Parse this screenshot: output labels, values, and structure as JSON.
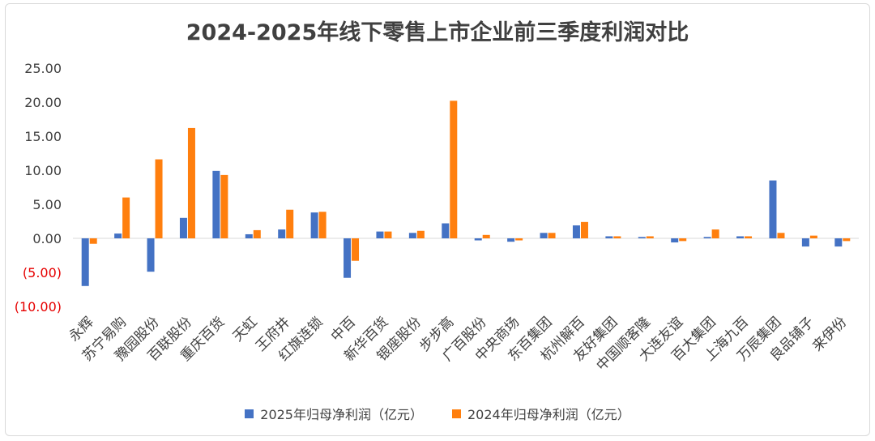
{
  "chart_data": {
    "type": "bar",
    "title": "2024-2025年线下零售上市企业前三季度利润对比",
    "xlabel": "",
    "ylabel": "",
    "ylim": [
      -10,
      25
    ],
    "yticks": [
      25,
      20,
      15,
      10,
      5,
      0,
      -5,
      -10
    ],
    "ytick_labels": [
      "25.00",
      "20.00",
      "15.00",
      "10.00",
      "5.00",
      "0.00",
      "(5.00)",
      "(10.00)"
    ],
    "negative_tick_color": "#e60000",
    "categories": [
      "永辉",
      "苏宁易购",
      "豫园股份",
      "百联股份",
      "重庆百货",
      "天虹",
      "王府井",
      "红旗连锁",
      "中百",
      "新华百货",
      "银座股份",
      "步步高",
      "广百股份",
      "中央商场",
      "东百集团",
      "杭州解百",
      "友好集团",
      "中国顺客隆",
      "大连友谊",
      "百大集团",
      "上海九百",
      "万辰集团",
      "良品铺子",
      "来伊份"
    ],
    "series": [
      {
        "name": "2025年归母净利润（亿元）",
        "color": "#4472c4",
        "values": [
          -7.0,
          0.7,
          -4.9,
          3.0,
          9.9,
          0.6,
          1.3,
          3.8,
          -5.8,
          1.0,
          0.8,
          2.2,
          -0.3,
          -0.5,
          0.8,
          1.9,
          0.3,
          0.2,
          -0.6,
          0.2,
          0.3,
          8.5,
          -1.2,
          -1.2
        ]
      },
      {
        "name": "2024年归母净利润（亿元）",
        "color": "#ff7f0e",
        "values": [
          -0.8,
          6.0,
          11.6,
          16.2,
          9.3,
          1.2,
          4.2,
          3.9,
          -3.3,
          1.0,
          1.1,
          20.2,
          0.5,
          -0.3,
          0.8,
          2.4,
          0.3,
          0.3,
          -0.4,
          1.3,
          0.3,
          0.8,
          0.4,
          -0.4
        ]
      }
    ]
  }
}
